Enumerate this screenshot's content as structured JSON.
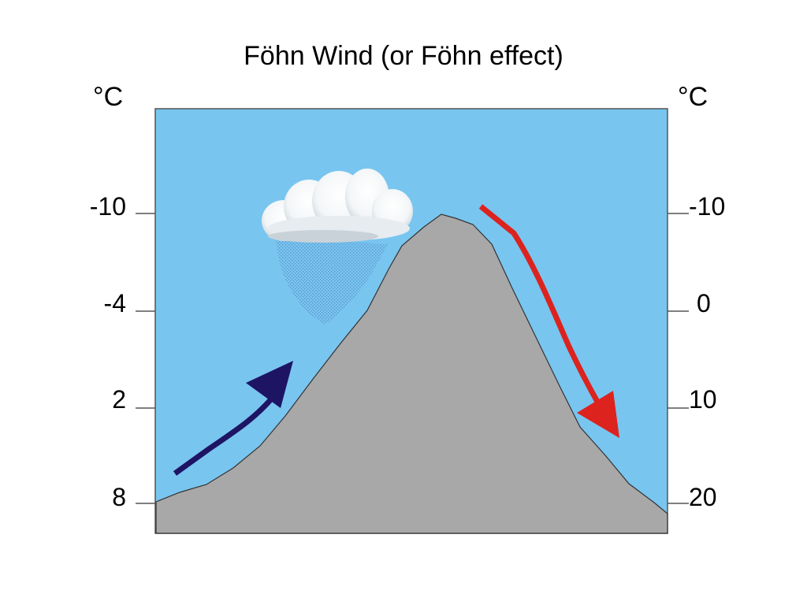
{
  "title": "Föhn Wind (or Föhn effect)",
  "left_axis": {
    "unit": "°C",
    "ticks": [
      "-10",
      "-4",
      "2",
      "8"
    ]
  },
  "right_axis": {
    "unit": "°C",
    "ticks": [
      "-10",
      "0",
      "10",
      "20"
    ]
  },
  "colors": {
    "sky": "#78c5f0",
    "mountain": "#a9a8a9",
    "windward_arrow": "#1e1464",
    "leeward_arrow": "#dc231e",
    "cloud": "#ffffff",
    "rain": "#5a8cc8"
  }
}
